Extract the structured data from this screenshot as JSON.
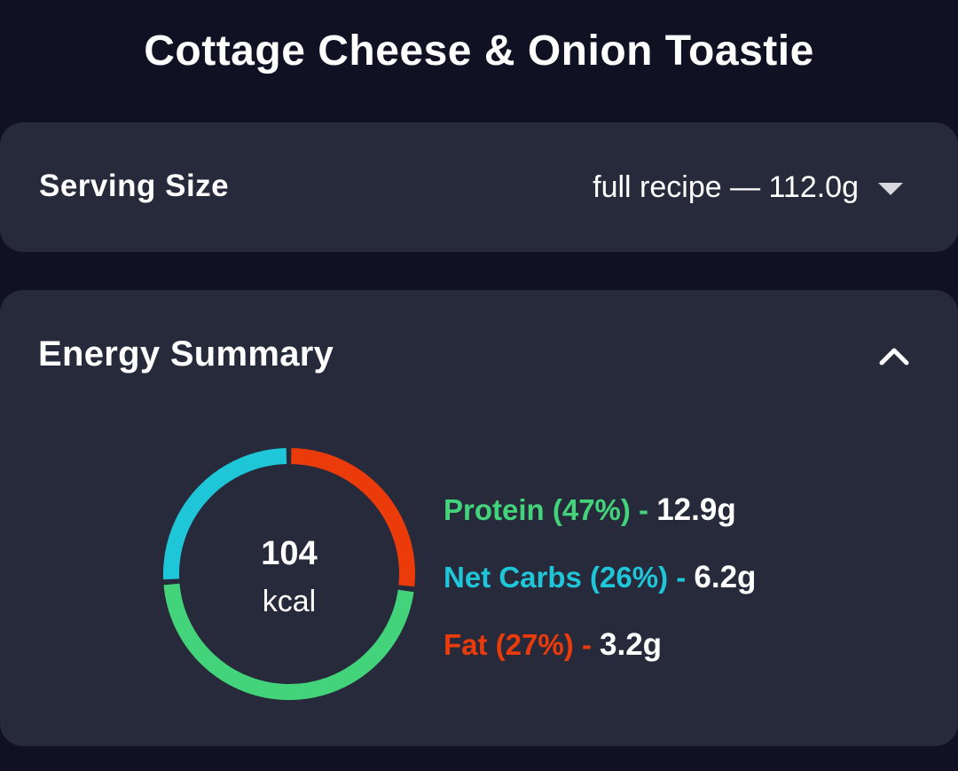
{
  "header": {
    "title": "Cottage Cheese & Onion Toastie"
  },
  "serving": {
    "label": "Serving Size",
    "value": "full recipe  — 112.0g",
    "dropdown_icon": "chevron-down-icon"
  },
  "energy": {
    "title": "Energy Summary",
    "collapse_icon": "chevron-up-icon",
    "kcal_value": "104",
    "kcal_unit": "kcal",
    "macros": [
      {
        "label": "Protein (47%) -",
        "amount": "12.9g",
        "percent": 47,
        "color": "#43d37a"
      },
      {
        "label": "Net Carbs (26%) -",
        "amount": "6.2g",
        "percent": 26,
        "color": "#1fc6d8"
      },
      {
        "label": "Fat (27%) -",
        "amount": "3.2g",
        "percent": 27,
        "color": "#ec3b0b"
      }
    ]
  },
  "colors": {
    "background": "#101224",
    "card": "#272a3b",
    "protein": "#43d37a",
    "carbs": "#1fc6d8",
    "fat": "#ec3b0b"
  }
}
